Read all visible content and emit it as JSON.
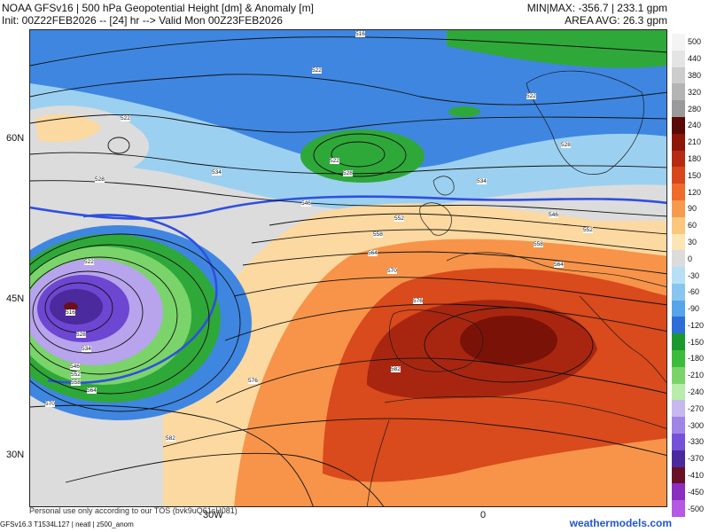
{
  "header": {
    "title": "NOAA GFSv16 | 500 hPa Geopotential Height [dm] & Anomaly [m]",
    "init_line": "Init: 00Z22FEB2026 -- [24] hr --> Valid Mon 00Z23FEB2026",
    "minmax": "MIN|MAX: -356.7 | 233.1 gpm",
    "area_avg": "AREA AVG: 26.3 gpm"
  },
  "axes": {
    "lat_labels": [
      "60N",
      "45N",
      "30N"
    ],
    "lon_labels": [
      "30W",
      "0"
    ]
  },
  "contour_labels": [
    "516",
    "522",
    "528",
    "534",
    "546",
    "552",
    "558",
    "564",
    "570",
    "576",
    "582"
  ],
  "colorbar": {
    "labels": [
      "500",
      "440",
      "380",
      "320",
      "280",
      "240",
      "210",
      "180",
      "150",
      "120",
      "90",
      "60",
      "30",
      "0",
      "-30",
      "-60",
      "-90",
      "-120",
      "-150",
      "-180",
      "-210",
      "-240",
      "-270",
      "-300",
      "-330",
      "-370",
      "-410",
      "-450",
      "-500"
    ],
    "colors": [
      "#f4f4f4",
      "#e4e4e4",
      "#cdcdcd",
      "#b4b4b4",
      "#9a9a9a",
      "#5a0a06",
      "#8c1608",
      "#b52a10",
      "#d8461c",
      "#f06a2a",
      "#f69a4e",
      "#fac77d",
      "#fbe6b3",
      "#dcdcdc",
      "#b8e0f4",
      "#88c6f0",
      "#56a4ea",
      "#2c6fd8",
      "#1a9a2e",
      "#3cbc3c",
      "#7ad46a",
      "#b8ecaa",
      "#c7b8ef",
      "#a184e8",
      "#7750d8",
      "#4a2a9c",
      "#6a1026",
      "#8a2ec0",
      "#b558e4"
    ]
  },
  "footer": {
    "credit": "GFSv16.3 T1534L127 | neatl | z500_anom",
    "tos": "Personal use only according to our TOS (bvk9uQ61sH081)",
    "site": "weathermodels.com"
  },
  "map": {
    "colors": {
      "warm_deep": "#7a1208",
      "warm": "#d94a1c",
      "orange": "#f7944a",
      "tan": "#fcd9a0",
      "neutral": "#dcdcdc",
      "cool_light": "#9cd0f0",
      "cool": "#3f86e0",
      "green": "#2fa83a",
      "lavender": "#b7a4ec",
      "purple": "#6d46d2",
      "dark_red": "#6a0f1c",
      "thick_line": "#2f4fe0"
    }
  }
}
